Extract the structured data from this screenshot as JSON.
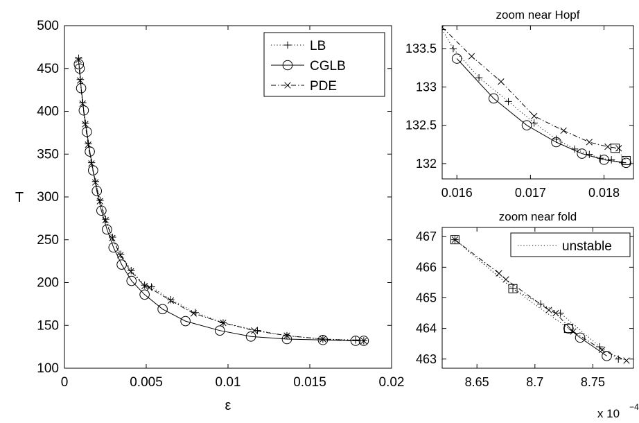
{
  "chart_data": [
    {
      "type": "line",
      "xlabel": "ε",
      "ylabel": "T",
      "xlim": [
        0,
        0.02
      ],
      "ylim": [
        100,
        500
      ],
      "xticks": [
        0,
        0.005,
        0.01,
        0.015,
        0.02
      ],
      "xtick_labels": [
        "0",
        "0.005",
        "0.01",
        "0.015",
        "0.02"
      ],
      "yticks": [
        100,
        150,
        200,
        250,
        300,
        350,
        400,
        450,
        500
      ],
      "ytick_labels": [
        "100",
        "150",
        "200",
        "250",
        "300",
        "350",
        "400",
        "450",
        "500"
      ],
      "legend_placement": "top-right",
      "series": [
        {
          "name": "LB",
          "line": "dotted",
          "marker": "plus",
          "x": [
            0.00087,
            0.00097,
            0.00112,
            0.00128,
            0.00146,
            0.00166,
            0.0019,
            0.00218,
            0.00252,
            0.00294,
            0.00344,
            0.00408,
            0.0049,
            0.00532,
            0.0065,
            0.008,
            0.0097,
            0.0118,
            0.0136,
            0.0158,
            0.0178,
            0.0183
          ],
          "y": [
            462,
            437,
            410,
            386,
            362,
            340,
            318,
            296,
            274,
            253,
            233,
            214,
            197,
            195,
            180,
            165,
            153,
            144,
            138,
            134,
            133,
            132
          ]
        },
        {
          "name": "CGLB",
          "line": "solid",
          "marker": "circle",
          "x": [
            0.00088,
            0.00093,
            0.00102,
            0.00118,
            0.00137,
            0.00155,
            0.00175,
            0.00198,
            0.00226,
            0.0026,
            0.003,
            0.0035,
            0.0041,
            0.0049,
            0.006,
            0.0074,
            0.0095,
            0.0114,
            0.0136,
            0.0158,
            0.0178,
            0.0183
          ],
          "y": [
            455,
            450,
            427,
            401,
            376,
            353,
            331,
            307,
            284,
            262,
            241,
            221,
            202,
            186,
            169,
            155,
            144,
            137,
            134,
            133,
            132,
            132
          ]
        },
        {
          "name": "PDE",
          "line": "dashdot",
          "marker": "cross",
          "x": [
            0.00086,
            0.00096,
            0.00111,
            0.00127,
            0.00145,
            0.00165,
            0.00189,
            0.00217,
            0.00251,
            0.00292,
            0.00342,
            0.00406,
            0.0049,
            0.0052,
            0.0065,
            0.0079,
            0.0097,
            0.0116,
            0.0136,
            0.0158,
            0.0183
          ],
          "y": [
            460,
            436,
            409,
            385,
            361,
            339,
            317,
            295,
            273,
            252,
            232,
            213,
            196,
            194,
            179,
            164,
            153,
            144,
            138,
            134,
            132
          ]
        }
      ]
    },
    {
      "type": "line",
      "title": "zoom near Hopf",
      "xlim": [
        0.0158,
        0.0184
      ],
      "ylim": [
        131.8,
        133.8
      ],
      "xticks": [
        0.016,
        0.017,
        0.018
      ],
      "xtick_labels": [
        "0.016",
        "0.017",
        "0.018"
      ],
      "yticks": [
        132,
        132.5,
        133,
        133.5
      ],
      "ytick_labels": [
        "132",
        "132.5",
        "133",
        "133.5"
      ],
      "series": [
        {
          "name": "LB",
          "line": "dotted",
          "marker": "plus",
          "x": [
            0.0158,
            0.01595,
            0.0163,
            0.0167,
            0.01705,
            0.01735,
            0.0176,
            0.0178,
            0.01795,
            0.0181,
            0.01825
          ],
          "y": [
            133.75,
            133.5,
            133.12,
            132.81,
            132.53,
            132.32,
            132.19,
            132.12,
            132.07,
            132.05,
            132.01
          ]
        },
        {
          "name": "CGLB",
          "line": "solid",
          "marker": "circle",
          "x": [
            0.016,
            0.0165,
            0.01695,
            0.01735,
            0.0177,
            0.018,
            0.0183
          ],
          "y": [
            133.37,
            132.85,
            132.5,
            132.28,
            132.13,
            132.05,
            132.01
          ]
        },
        {
          "name": "PDE",
          "line": "dashdot",
          "marker": "cross",
          "x": [
            0.0158,
            0.0162,
            0.0166,
            0.01705,
            0.01745,
            0.0178,
            0.01805,
            0.0182
          ],
          "y": [
            133.78,
            133.4,
            133.07,
            132.62,
            132.43,
            132.28,
            132.22,
            132.2
          ]
        },
        {
          "name": "unstable",
          "line": "dotted",
          "marker": "square",
          "x": [
            0.01815,
            0.0183
          ],
          "y": [
            132.2,
            132.04
          ]
        }
      ]
    },
    {
      "type": "line",
      "title": "zoom near fold",
      "xlim": [
        8.62,
        8.785
      ],
      "ylim": [
        462.7,
        467.3
      ],
      "xticks": [
        8.65,
        8.7,
        8.75
      ],
      "xtick_labels": [
        "8.65",
        "8.7",
        "8.75"
      ],
      "x_multiplier": "x 10",
      "x_multiplier_exponent": "−4",
      "yticks": [
        463,
        464,
        465,
        466,
        467
      ],
      "ytick_labels": [
        "463",
        "464",
        "465",
        "466",
        "467"
      ],
      "legend_placement": "top-right",
      "series": [
        {
          "name": "LB",
          "line": "dotted",
          "marker": "plus",
          "x": [
            8.631,
            8.681,
            8.705,
            8.722,
            8.756,
            8.772
          ],
          "y": [
            466.9,
            465.3,
            464.8,
            464.5,
            463.4,
            463.0
          ]
        },
        {
          "name": "CGLB",
          "line": "solid",
          "marker": "circle",
          "x": [
            8.729,
            8.739,
            8.762
          ],
          "y": [
            464.0,
            463.7,
            463.1
          ]
        },
        {
          "name": "PDE",
          "line": "dashdot",
          "marker": "cross",
          "x": [
            8.631,
            8.669,
            8.675,
            8.712,
            8.718,
            8.733,
            8.758,
            8.779
          ],
          "y": [
            466.9,
            465.8,
            465.6,
            464.6,
            464.5,
            463.9,
            463.3,
            462.95
          ]
        },
        {
          "name": "unstable",
          "line": "dotted",
          "marker": "square",
          "x": [
            8.631,
            8.681,
            8.729
          ],
          "y": [
            466.9,
            465.3,
            464.0
          ]
        }
      ]
    }
  ]
}
